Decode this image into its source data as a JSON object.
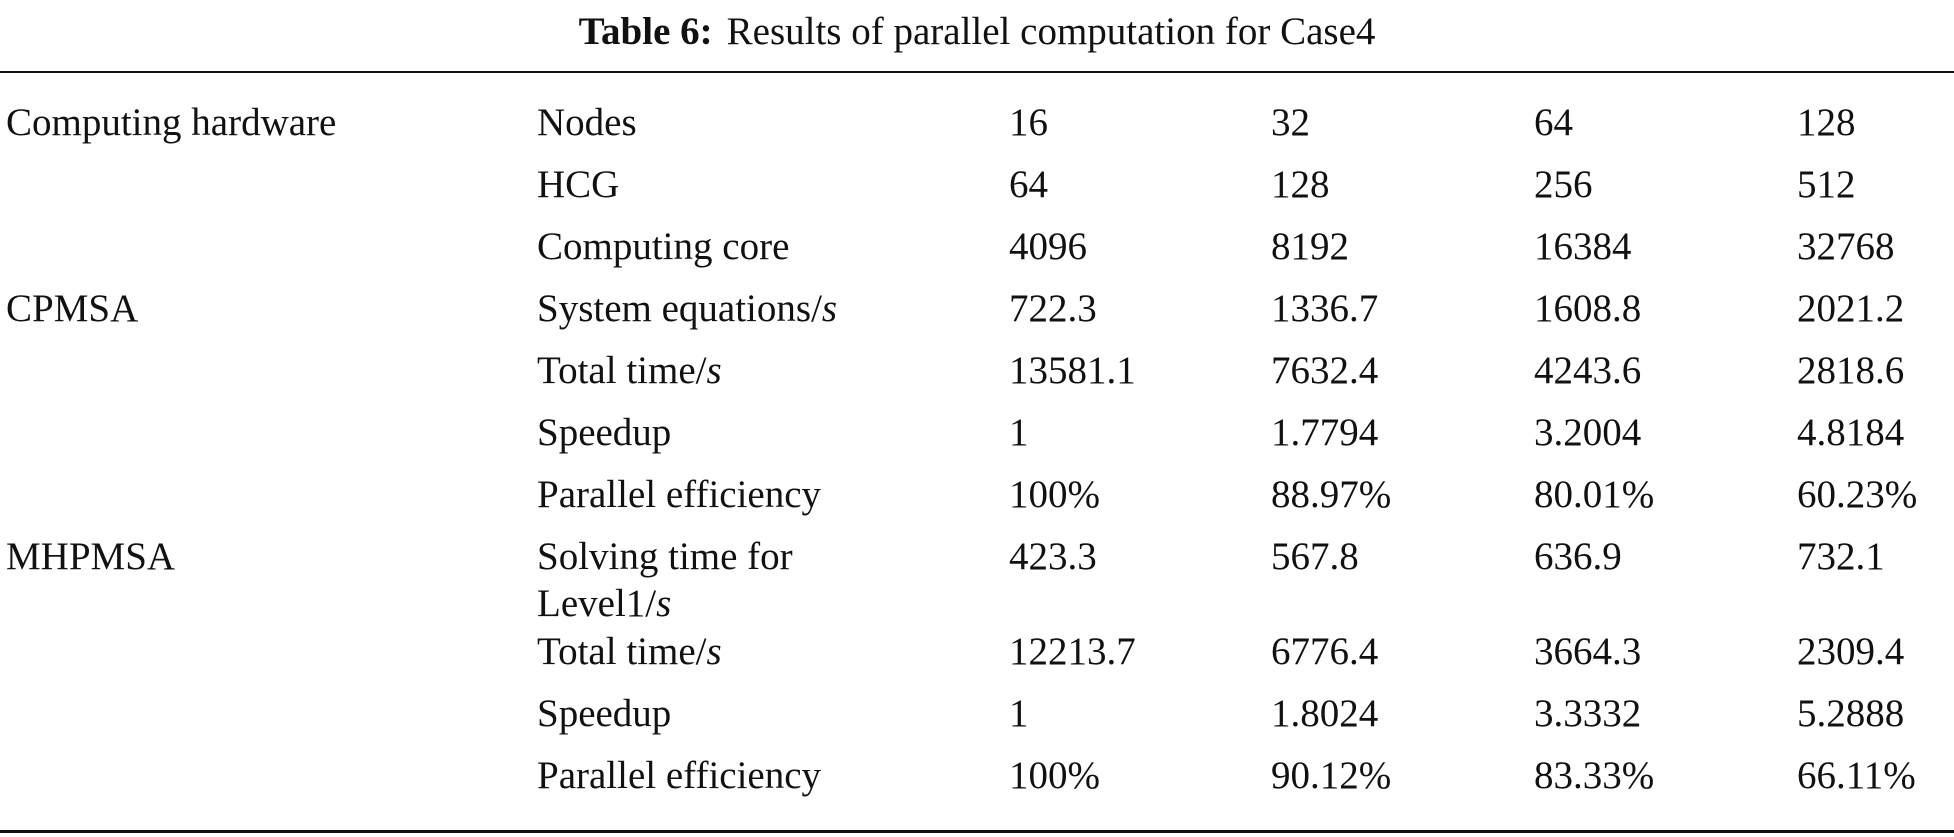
{
  "caption": {
    "label": "Table 6:",
    "text": "Results of parallel computation for Case4"
  },
  "table": {
    "rows": [
      {
        "group": "Computing hardware",
        "metric": "Nodes",
        "unit": "",
        "values": [
          "16",
          "32",
          "64",
          "128"
        ]
      },
      {
        "group": "",
        "metric": "HCG",
        "unit": "",
        "values": [
          "64",
          "128",
          "256",
          "512"
        ]
      },
      {
        "group": "",
        "metric": "Computing core",
        "unit": "",
        "values": [
          "4096",
          "8192",
          "16384",
          "32768"
        ]
      },
      {
        "group": "CPMSA",
        "metric": "System equations/",
        "unit": "s",
        "values": [
          "722.3",
          "1336.7",
          "1608.8",
          "2021.2"
        ]
      },
      {
        "group": "",
        "metric": "Total time/",
        "unit": "s",
        "values": [
          "13581.1",
          "7632.4",
          "4243.6",
          "2818.6"
        ]
      },
      {
        "group": "",
        "metric": "Speedup",
        "unit": "",
        "values": [
          "1",
          "1.7794",
          "3.2004",
          "4.8184"
        ]
      },
      {
        "group": "",
        "metric": "Parallel efficiency",
        "unit": "",
        "values": [
          "100%",
          "88.97%",
          "80.01%",
          "60.23%"
        ]
      },
      {
        "group": "MHPMSA",
        "metric": "Solving time for",
        "metric_line2": "Level1/",
        "unit": "s",
        "values": [
          "423.3",
          "567.8",
          "636.9",
          "732.1"
        ]
      },
      {
        "group": "",
        "metric": "Total time/",
        "unit": "s",
        "values": [
          "12213.7",
          "6776.4",
          "3664.3",
          "2309.4"
        ]
      },
      {
        "group": "",
        "metric": "Speedup",
        "unit": "",
        "values": [
          "1",
          "1.8024",
          "3.3332",
          "5.2888"
        ]
      },
      {
        "group": "",
        "metric": "Parallel efficiency",
        "unit": "",
        "values": [
          "100%",
          "90.12%",
          "83.33%",
          "66.11%"
        ]
      }
    ]
  }
}
